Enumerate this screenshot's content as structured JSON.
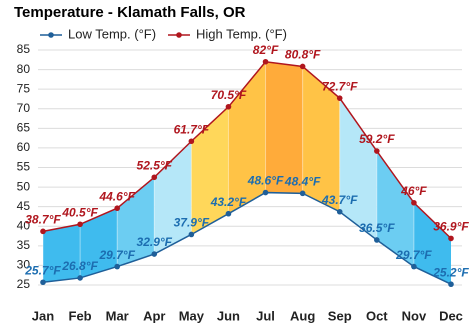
{
  "chart_data": {
    "type": "range-line",
    "title": "Temperature - Klamath Falls, OR",
    "categories": [
      "Jan",
      "Feb",
      "Mar",
      "Apr",
      "May",
      "Jun",
      "Jul",
      "Aug",
      "Sep",
      "Oct",
      "Nov",
      "Dec"
    ],
    "series": [
      {
        "name": "Low Temp. (°F)",
        "color": "#1f5f99",
        "values": [
          25.7,
          26.8,
          29.7,
          32.9,
          37.9,
          43.2,
          48.6,
          48.4,
          43.7,
          36.5,
          29.7,
          25.2
        ],
        "value_labels": [
          "25.7°F",
          "26.8°F",
          "29.7°F",
          "32.9°F",
          "37.9°F",
          "43.2°F",
          "48.6°F",
          "48.4°F",
          "43.7°F",
          "36.5°F",
          "29.7°F",
          "25.2°F"
        ],
        "label_color": "#1c6db0"
      },
      {
        "name": "High Temp. (°F)",
        "color": "#b0161e",
        "values": [
          38.7,
          40.5,
          44.6,
          52.5,
          61.7,
          70.5,
          82,
          80.8,
          72.7,
          59.2,
          46,
          36.9
        ],
        "value_labels": [
          "38.7°F",
          "40.5°F",
          "44.6°F",
          "52.5°F",
          "61.7°F",
          "70.5°F",
          "82°F",
          "80.8°F",
          "72.7°F",
          "59.2°F",
          "46°F",
          "36.9°F"
        ],
        "label_color": "#b0161e"
      }
    ],
    "band_colors": [
      "#3fbbee",
      "#3fbbee",
      "#6ccdf2",
      "#b5e7f8",
      "#ffd75a",
      "#ffc346",
      "#ffab3a",
      "#ffc346",
      "#b5e7f8",
      "#6ccdf2",
      "#3fbbee"
    ],
    "ylim": [
      25,
      85
    ],
    "yticks": [
      25,
      30,
      35,
      40,
      45,
      50,
      55,
      60,
      65,
      70,
      75,
      80,
      85
    ],
    "grid": true
  }
}
